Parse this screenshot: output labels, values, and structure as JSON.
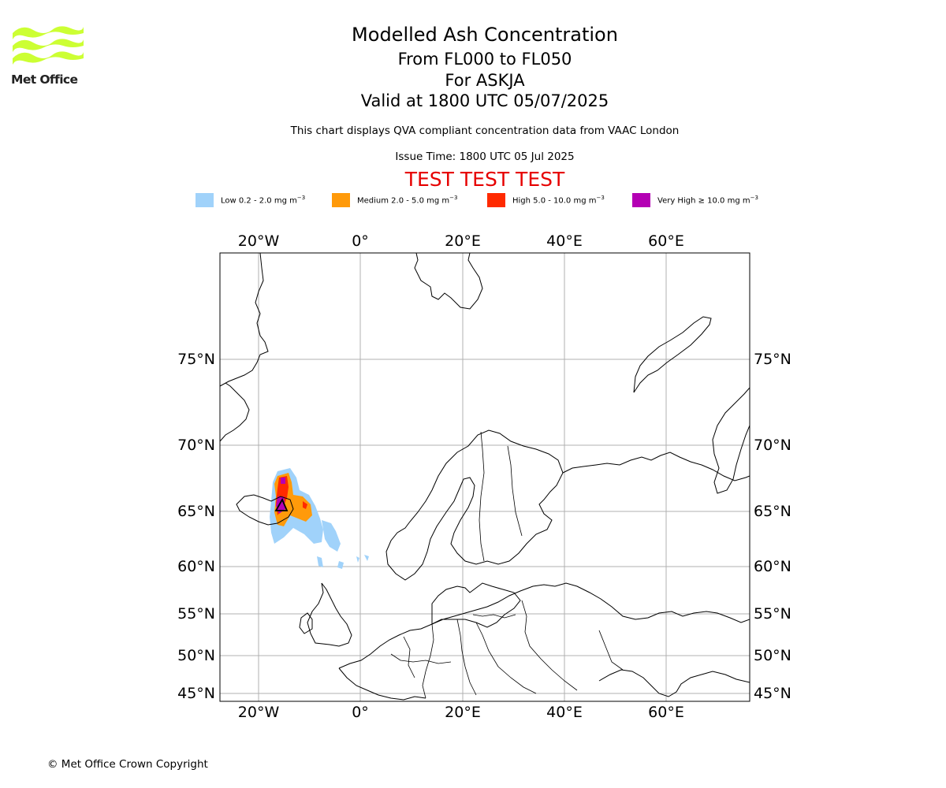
{
  "header": {
    "title": "Modelled Ash Concentration",
    "levels": "From FL000 to FL050",
    "volcano": "For ASKJA",
    "valid": "Valid at 1800 UTC 05/07/2025",
    "description": "This chart displays QVA compliant concentration data from VAAC London",
    "issue_time": "Issue Time: 1800 UTC 05 Jul 2025",
    "test_banner": "TEST TEST TEST",
    "test_banner_color": "#e60000"
  },
  "logo": {
    "text": "Met Office",
    "icon": "met-office-wave-logo",
    "color": "#ccff33"
  },
  "legend": [
    {
      "label": "Low 0.2 - 2.0 mg m",
      "exp": "−3",
      "color": "#a0d2fa"
    },
    {
      "label": "Medium 2.0 - 5.0 mg m",
      "exp": "−3",
      "color": "#ff9a0a"
    },
    {
      "label": "High 5.0 - 10.0 mg m",
      "exp": "−3",
      "color": "#ff2a00"
    },
    {
      "label": "Very High  ≥  10.0 mg m",
      "exp": "−3",
      "color": "#b400b4"
    }
  ],
  "map": {
    "lon_labels": [
      "20°W",
      "0°",
      "20°E",
      "40°E",
      "60°E"
    ],
    "lat_labels": [
      "75°N",
      "70°N",
      "65°N",
      "60°N",
      "55°N",
      "50°N",
      "45°N"
    ],
    "gridlines": true
  },
  "footer": {
    "copyright": "© Met Office Crown Copyright"
  }
}
